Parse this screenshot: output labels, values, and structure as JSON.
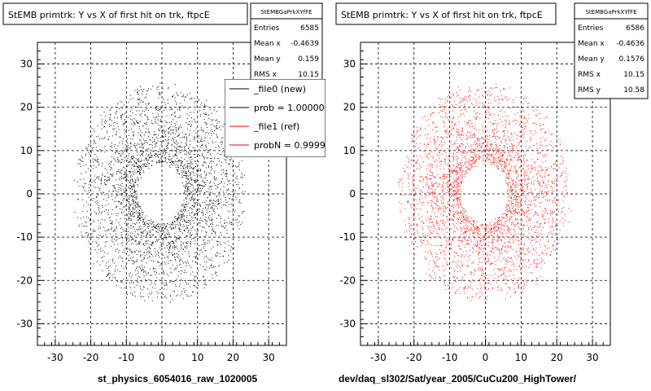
{
  "chart_data": [
    {
      "type": "scatter",
      "title": "StEMB primtrk: Y vs X of first hit on trk, ftpcE",
      "xlabel": "st_physics_6054016_raw_1020005",
      "ylabel": "",
      "xlim": [
        -35,
        35
      ],
      "ylim": [
        -35,
        35
      ],
      "xticks": [
        -30,
        -20,
        -10,
        0,
        10,
        20,
        30
      ],
      "yticks": [
        -30,
        -20,
        -10,
        0,
        10,
        20,
        30
      ],
      "grid": true,
      "marker_color": "#000000",
      "distribution": {
        "shape": "annulus",
        "inner_radius": 7,
        "outer_radius": 24,
        "center": [
          -0.4639,
          0.159
        ]
      },
      "stats": {
        "name": "StEMBGaPrkXYfFE",
        "rows": [
          {
            "label": "Entries",
            "value": "6585"
          },
          {
            "label": "Mean x",
            "value": "-0.4639"
          },
          {
            "label": "Mean y",
            "value": "0.159"
          },
          {
            "label": "RMS x",
            "value": "10.15"
          }
        ]
      },
      "legend": {
        "placement": "top-right",
        "entries": [
          {
            "label": "_file0 (new)",
            "color": "#000000"
          },
          {
            "label": "prob = 1.000000",
            "color": "#000000"
          },
          {
            "label": "_file1 (ref)",
            "color": "#ff0000"
          },
          {
            "label": "probN = 0.99997",
            "color": "#ff0000"
          }
        ]
      }
    },
    {
      "type": "scatter",
      "title": "StEMB primtrk: Y vs X of first hit on trk, ftpcE",
      "xlabel": "dev/daq_sl302/Sat/year_2005/CuCu200_HighTower/",
      "ylabel": "",
      "xlim": [
        -35,
        35
      ],
      "ylim": [
        -35,
        35
      ],
      "xticks": [
        -30,
        -20,
        -10,
        0,
        10,
        20,
        30
      ],
      "yticks": [
        -30,
        -20,
        -10,
        0,
        10,
        20,
        30
      ],
      "grid": true,
      "marker_color": "#ff0000",
      "distribution": {
        "shape": "annulus",
        "inner_radius": 7,
        "outer_radius": 24,
        "center": [
          -0.4636,
          0.1576
        ]
      },
      "stats": {
        "name": "StEMBGaPrkXYfFE",
        "rows": [
          {
            "label": "Entries",
            "value": "6586"
          },
          {
            "label": "Mean x",
            "value": "-0.4636"
          },
          {
            "label": "Mean y",
            "value": "0.1576"
          },
          {
            "label": "RMS x",
            "value": "10.15"
          },
          {
            "label": "RMS y",
            "value": "10.58"
          }
        ]
      }
    }
  ]
}
